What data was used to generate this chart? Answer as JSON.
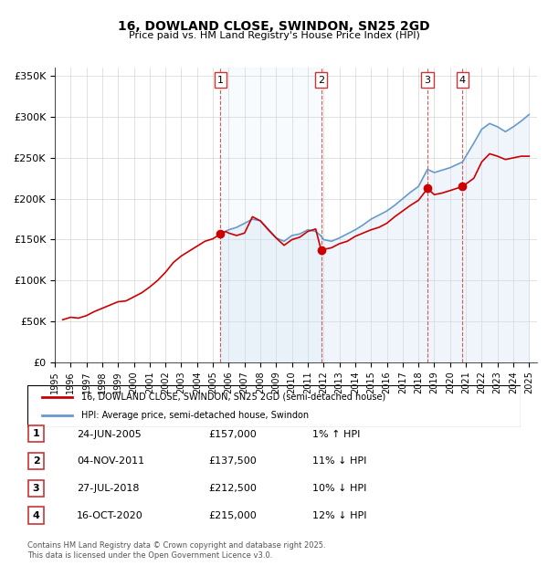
{
  "title": "16, DOWLAND CLOSE, SWINDON, SN25 2GD",
  "subtitle": "Price paid vs. HM Land Registry's House Price Index (HPI)",
  "ylabel": "",
  "ylim": [
    0,
    360000
  ],
  "yticks": [
    0,
    50000,
    100000,
    150000,
    200000,
    250000,
    300000,
    350000
  ],
  "ytick_labels": [
    "£0",
    "£50K",
    "£100K",
    "£150K",
    "£200K",
    "£250K",
    "£300K",
    "£350K"
  ],
  "xlim_start": 1995.0,
  "xlim_end": 2025.5,
  "red_line_color": "#cc0000",
  "blue_line_color": "#6699cc",
  "blue_fill_color": "#cce0f0",
  "grid_color": "#cccccc",
  "background_color": "#ffffff",
  "sale_marker_color": "#cc0000",
  "vline_color": "#cc3333",
  "sale_transactions": [
    {
      "year": 2005.48,
      "price": 157000,
      "label": "1"
    },
    {
      "year": 2011.84,
      "price": 137500,
      "label": "2"
    },
    {
      "year": 2018.57,
      "price": 212500,
      "label": "3"
    },
    {
      "year": 2020.79,
      "price": 215000,
      "label": "4"
    }
  ],
  "legend_label_red": "16, DOWLAND CLOSE, SWINDON, SN25 2GD (semi-detached house)",
  "legend_label_blue": "HPI: Average price, semi-detached house, Swindon",
  "table_rows": [
    {
      "num": "1",
      "date": "24-JUN-2005",
      "price": "£157,000",
      "hpi": "1% ↑ HPI"
    },
    {
      "num": "2",
      "date": "04-NOV-2011",
      "price": "£137,500",
      "hpi": "11% ↓ HPI"
    },
    {
      "num": "3",
      "date": "27-JUL-2018",
      "price": "£212,500",
      "hpi": "10% ↓ HPI"
    },
    {
      "num": "4",
      "date": "16-OCT-2020",
      "price": "£215,000",
      "hpi": "12% ↓ HPI"
    }
  ],
  "footer": "Contains HM Land Registry data © Crown copyright and database right 2025.\nThis data is licensed under the Open Government Licence v3.0.",
  "red_data": [
    [
      1995.5,
      52000
    ],
    [
      1996.0,
      55000
    ],
    [
      1996.5,
      54000
    ],
    [
      1997.0,
      57000
    ],
    [
      1997.5,
      62000
    ],
    [
      1998.0,
      66000
    ],
    [
      1998.5,
      70000
    ],
    [
      1999.0,
      74000
    ],
    [
      1999.5,
      75000
    ],
    [
      2000.0,
      80000
    ],
    [
      2000.5,
      85000
    ],
    [
      2001.0,
      92000
    ],
    [
      2001.5,
      100000
    ],
    [
      2002.0,
      110000
    ],
    [
      2002.5,
      122000
    ],
    [
      2003.0,
      130000
    ],
    [
      2003.5,
      136000
    ],
    [
      2004.0,
      142000
    ],
    [
      2004.5,
      148000
    ],
    [
      2005.0,
      151000
    ],
    [
      2005.48,
      157000
    ],
    [
      2005.8,
      160000
    ],
    [
      2006.0,
      158000
    ],
    [
      2006.5,
      155000
    ],
    [
      2007.0,
      158000
    ],
    [
      2007.5,
      178000
    ],
    [
      2008.0,
      173000
    ],
    [
      2008.5,
      162000
    ],
    [
      2009.0,
      152000
    ],
    [
      2009.5,
      143000
    ],
    [
      2010.0,
      150000
    ],
    [
      2010.5,
      153000
    ],
    [
      2011.0,
      160000
    ],
    [
      2011.5,
      163000
    ],
    [
      2011.84,
      137500
    ],
    [
      2012.0,
      138000
    ],
    [
      2012.5,
      140000
    ],
    [
      2013.0,
      145000
    ],
    [
      2013.5,
      148000
    ],
    [
      2014.0,
      154000
    ],
    [
      2014.5,
      158000
    ],
    [
      2015.0,
      162000
    ],
    [
      2015.5,
      165000
    ],
    [
      2016.0,
      170000
    ],
    [
      2016.5,
      178000
    ],
    [
      2017.0,
      185000
    ],
    [
      2017.5,
      192000
    ],
    [
      2018.0,
      198000
    ],
    [
      2018.57,
      212500
    ],
    [
      2019.0,
      205000
    ],
    [
      2019.5,
      207000
    ],
    [
      2020.0,
      210000
    ],
    [
      2020.79,
      215000
    ],
    [
      2021.0,
      218000
    ],
    [
      2021.5,
      225000
    ],
    [
      2022.0,
      245000
    ],
    [
      2022.5,
      255000
    ],
    [
      2023.0,
      252000
    ],
    [
      2023.5,
      248000
    ],
    [
      2024.0,
      250000
    ],
    [
      2024.5,
      252000
    ],
    [
      2025.0,
      252000
    ]
  ],
  "blue_data": [
    [
      2005.48,
      157000
    ],
    [
      2006.0,
      162000
    ],
    [
      2006.5,
      165000
    ],
    [
      2007.0,
      170000
    ],
    [
      2007.5,
      175000
    ],
    [
      2008.0,
      173000
    ],
    [
      2008.5,
      163000
    ],
    [
      2009.0,
      152000
    ],
    [
      2009.5,
      148000
    ],
    [
      2010.0,
      155000
    ],
    [
      2010.5,
      157000
    ],
    [
      2011.0,
      162000
    ],
    [
      2011.5,
      160000
    ],
    [
      2011.84,
      154500
    ],
    [
      2012.0,
      150000
    ],
    [
      2012.5,
      148000
    ],
    [
      2013.0,
      152000
    ],
    [
      2013.5,
      157000
    ],
    [
      2014.0,
      162000
    ],
    [
      2014.5,
      168000
    ],
    [
      2015.0,
      175000
    ],
    [
      2015.5,
      180000
    ],
    [
      2016.0,
      185000
    ],
    [
      2016.5,
      192000
    ],
    [
      2017.0,
      200000
    ],
    [
      2017.5,
      208000
    ],
    [
      2018.0,
      215000
    ],
    [
      2018.57,
      236000
    ],
    [
      2019.0,
      232000
    ],
    [
      2019.5,
      235000
    ],
    [
      2020.0,
      238000
    ],
    [
      2020.79,
      245000
    ],
    [
      2021.0,
      252000
    ],
    [
      2021.5,
      268000
    ],
    [
      2022.0,
      285000
    ],
    [
      2022.5,
      292000
    ],
    [
      2023.0,
      288000
    ],
    [
      2023.5,
      282000
    ],
    [
      2024.0,
      288000
    ],
    [
      2024.5,
      295000
    ],
    [
      2025.0,
      303000
    ]
  ]
}
